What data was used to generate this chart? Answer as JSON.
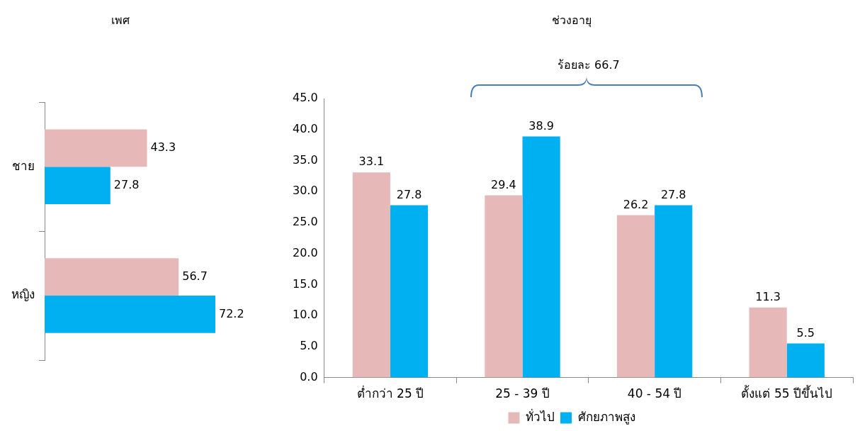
{
  "chart_data": [
    {
      "type": "bar",
      "orientation": "horizontal",
      "title": "เพศ",
      "categories": [
        "ชาย",
        "หญิง"
      ],
      "series": [
        {
          "color": "#e6b9b8",
          "values": [
            43.3,
            56.7
          ]
        },
        {
          "color": "#00b0f0",
          "values": [
            27.8,
            72.2
          ]
        }
      ],
      "data_labels": true
    },
    {
      "type": "bar",
      "title": "ช่วงอายุ",
      "categories": [
        "ต่ำกว่า 25 ปี",
        "25 - 39 ปี",
        "40 - 54 ปี",
        "ตั้งแต่ 55 ปีขึ้นไป"
      ],
      "series": [
        {
          "name": "ทั่วไป",
          "color": "#e6b9b8",
          "values": [
            33.1,
            29.4,
            26.2,
            11.3
          ]
        },
        {
          "name": "ศักยภาพสูง",
          "color": "#00b0f0",
          "values": [
            27.8,
            38.9,
            27.8,
            5.5
          ]
        }
      ],
      "ylim": [
        0,
        45
      ],
      "yticks": [
        {
          "value": 0,
          "label": "0.0"
        },
        {
          "value": 5,
          "label": "5.0"
        },
        {
          "value": 10,
          "label": "10.0"
        },
        {
          "value": 15,
          "label": "15.0"
        },
        {
          "value": 20,
          "label": "20.0"
        },
        {
          "value": 25,
          "label": "25.0"
        },
        {
          "value": 30,
          "label": "30.0"
        },
        {
          "value": 35,
          "label": "35.0"
        },
        {
          "value": 40,
          "label": "40.0"
        },
        {
          "value": 45,
          "label": "45.0"
        }
      ],
      "legend": "bottom",
      "data_labels": true,
      "annotations": [
        "ร้อยละ 66.7"
      ]
    }
  ]
}
